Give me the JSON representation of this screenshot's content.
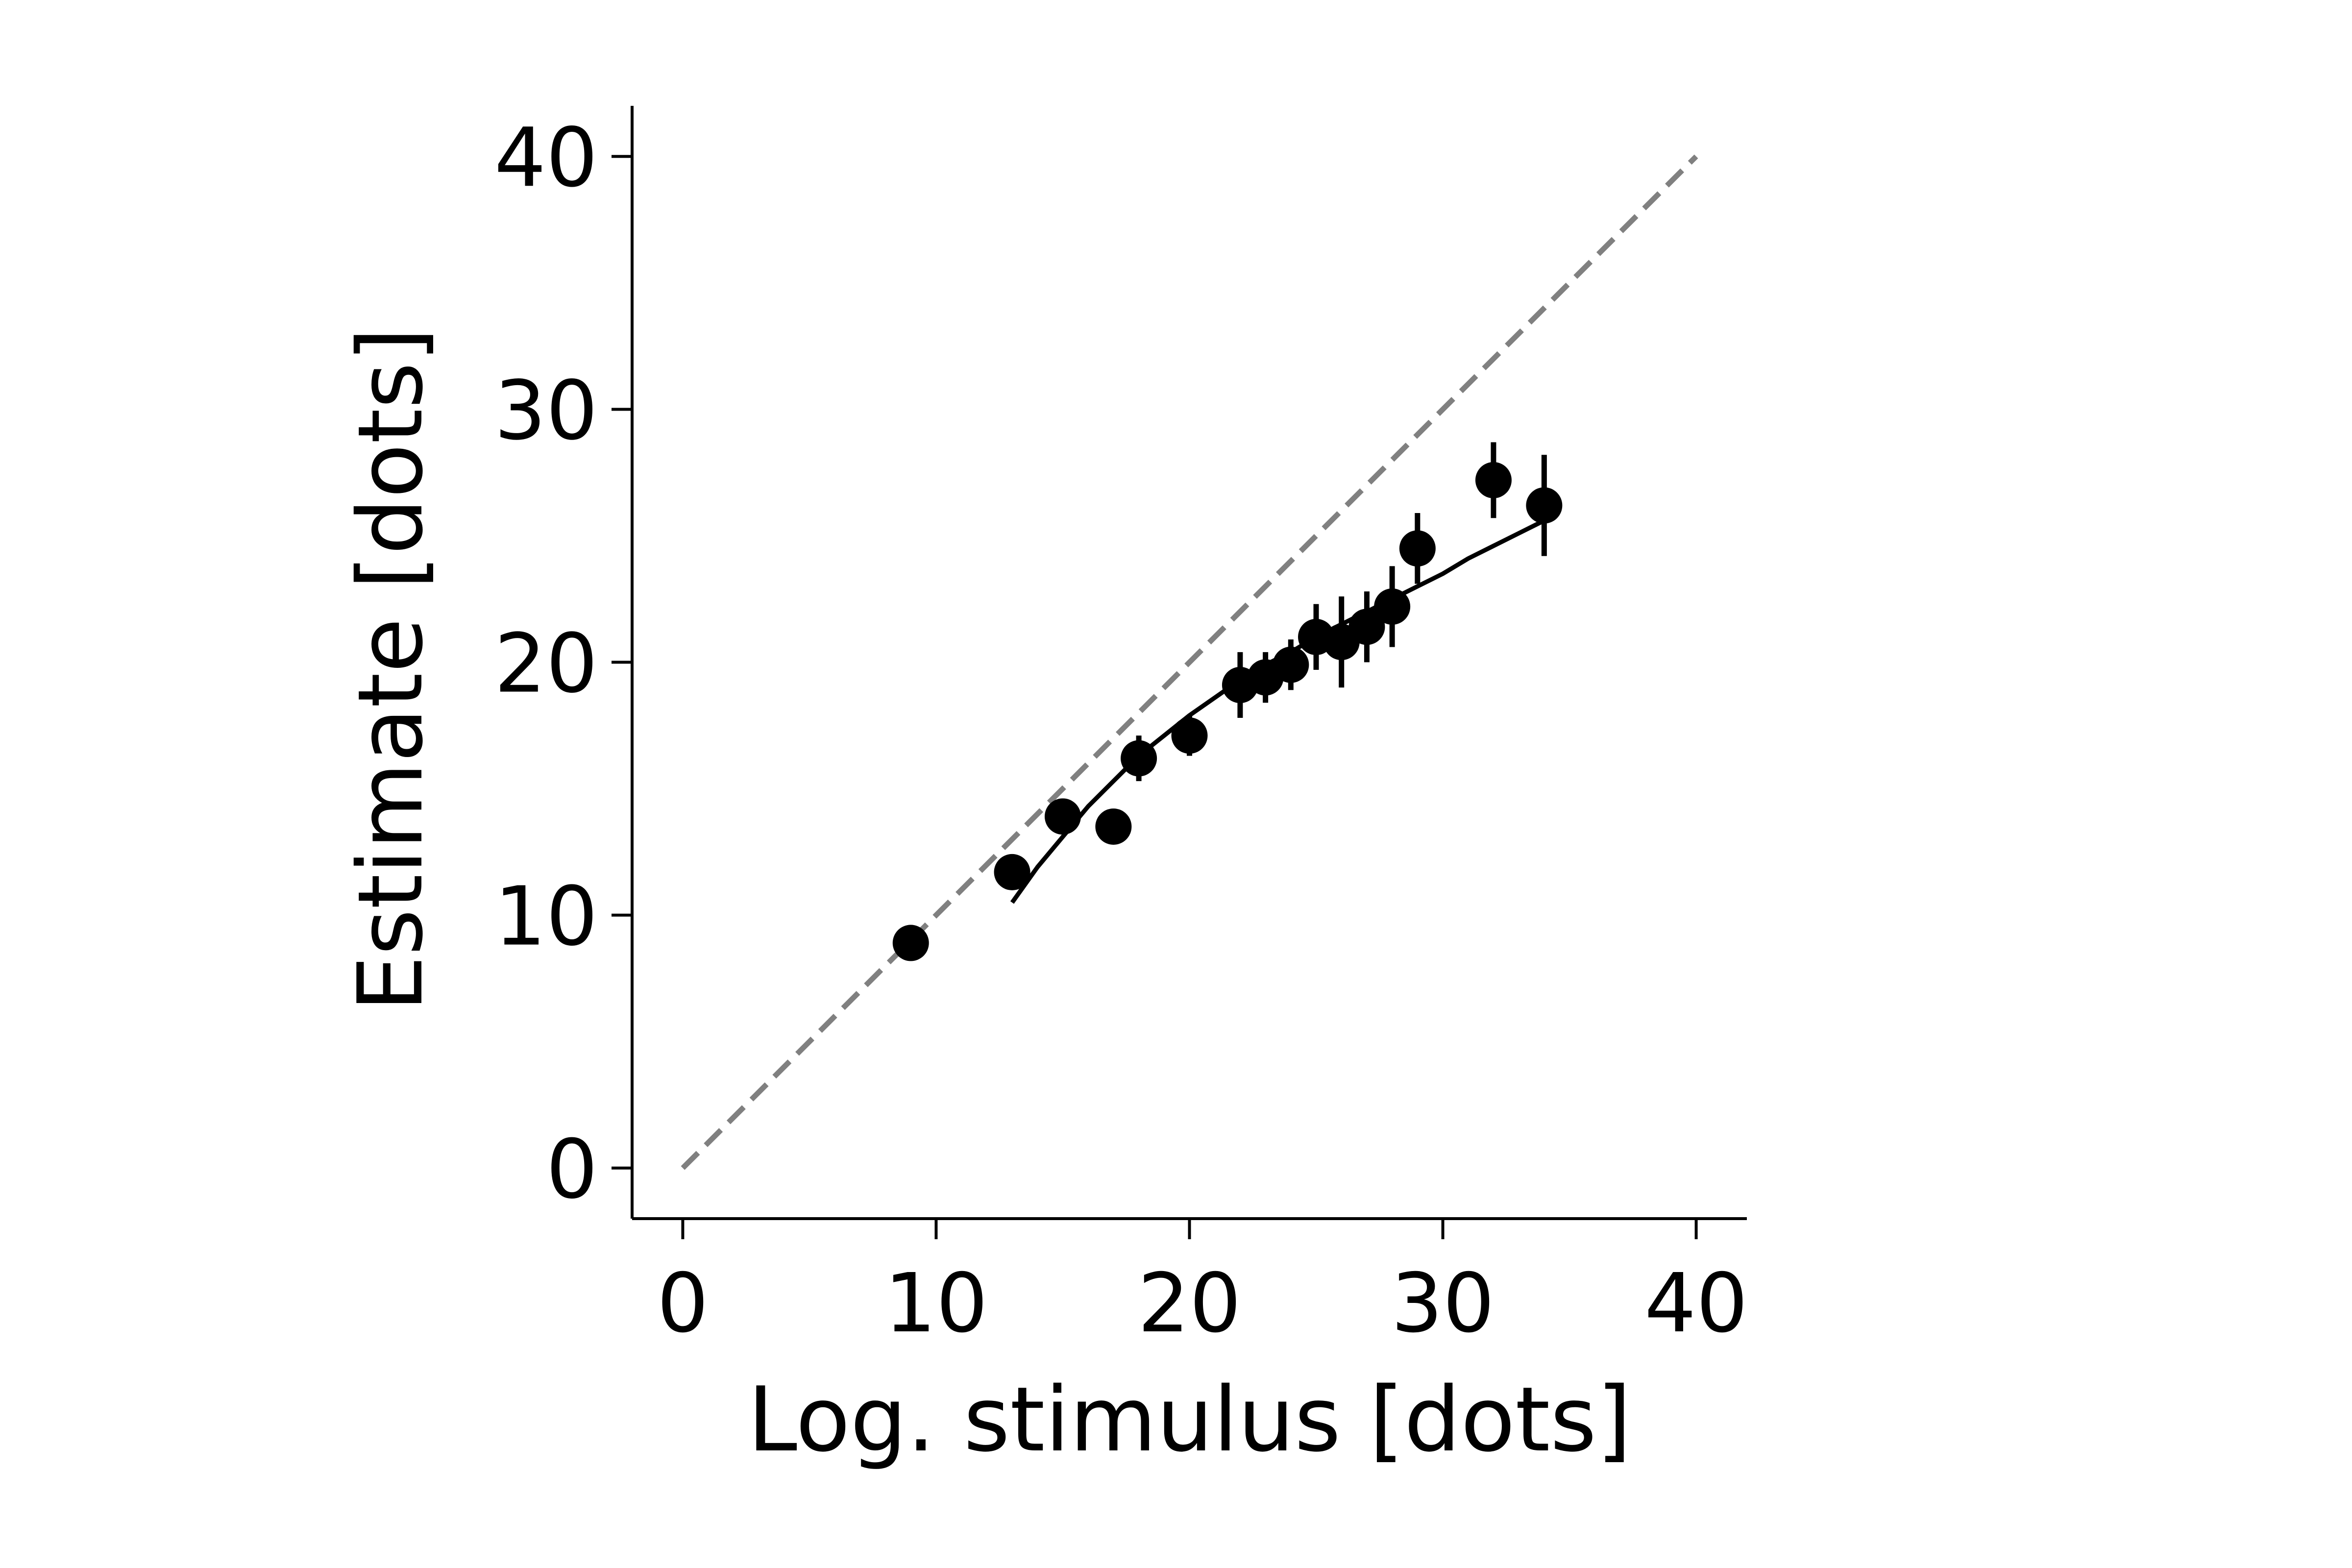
{
  "chart_data": {
    "type": "scatter",
    "xlabel": "Log. stimulus [dots]",
    "ylabel": "Estimate [dots]",
    "xlim": [
      -2,
      42
    ],
    "ylim": [
      -2,
      42
    ],
    "xticks": [
      0,
      10,
      20,
      30,
      40
    ],
    "yticks": [
      0,
      10,
      20,
      30,
      40
    ],
    "grid": false,
    "legend": "none",
    "identity_line": {
      "x": [
        0,
        40
      ],
      "y": [
        0,
        40
      ],
      "color": "#808080",
      "style": "dashed"
    },
    "points": [
      {
        "x": 9,
        "y": 8.9,
        "err": 0.3
      },
      {
        "x": 13,
        "y": 11.7,
        "err": 0.4
      },
      {
        "x": 15,
        "y": 13.9,
        "err": 0.6
      },
      {
        "x": 17,
        "y": 13.5,
        "err": 0.4
      },
      {
        "x": 18,
        "y": 16.2,
        "err": 0.9
      },
      {
        "x": 20,
        "y": 17.1,
        "err": 0.8
      },
      {
        "x": 22,
        "y": 19.1,
        "err": 1.3
      },
      {
        "x": 23,
        "y": 19.4,
        "err": 1.0
      },
      {
        "x": 24,
        "y": 19.9,
        "err": 1.0
      },
      {
        "x": 25,
        "y": 21.0,
        "err": 1.3
      },
      {
        "x": 26,
        "y": 20.8,
        "err": 1.8
      },
      {
        "x": 27,
        "y": 21.4,
        "err": 1.4
      },
      {
        "x": 28,
        "y": 22.2,
        "err": 1.6
      },
      {
        "x": 29,
        "y": 24.5,
        "err": 1.4
      },
      {
        "x": 32,
        "y": 27.2,
        "err": 1.5
      },
      {
        "x": 34,
        "y": 26.2,
        "err": 2.0
      }
    ],
    "fit_line": {
      "x": [
        13,
        14,
        15,
        16,
        17,
        18,
        19,
        20,
        21,
        22,
        23,
        24,
        25,
        26,
        27,
        28,
        29,
        30,
        31,
        32,
        33,
        34
      ],
      "y": [
        10.5,
        11.9,
        13.1,
        14.3,
        15.3,
        16.3,
        17.1,
        17.9,
        18.6,
        19.3,
        19.9,
        20.4,
        21.0,
        21.5,
        22.0,
        22.5,
        23.0,
        23.5,
        24.1,
        24.6,
        25.1,
        25.6
      ],
      "color": "#000000"
    }
  }
}
